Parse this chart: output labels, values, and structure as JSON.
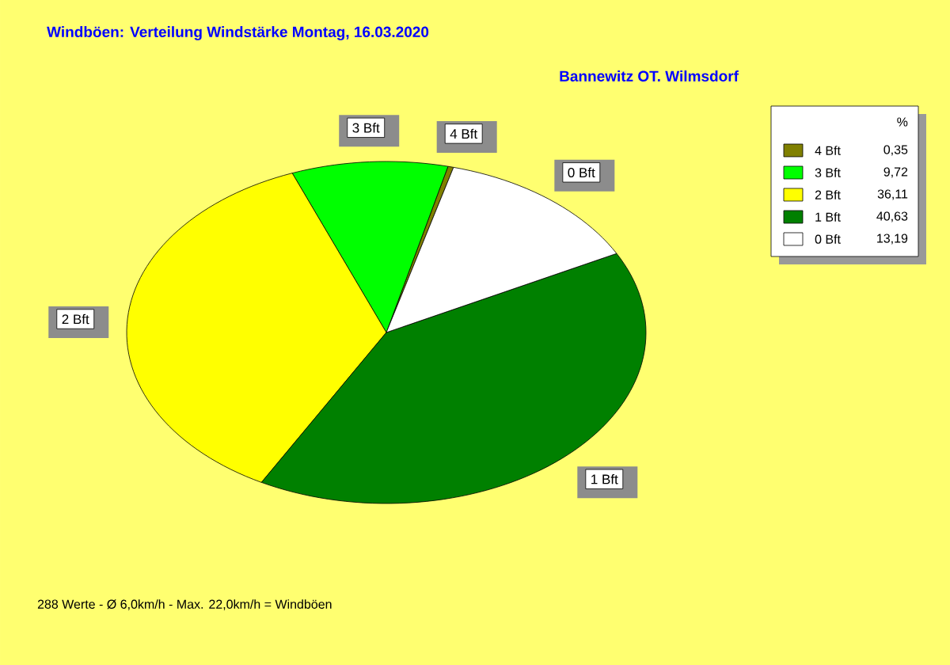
{
  "chart_data": {
    "type": "pie",
    "title": "Windböen: Verteilung Windstärke  Montag, 16.03.2020",
    "subtitle": "Bannewitz OT. Wilmsdorf",
    "categories": [
      "4 Bft",
      "3 Bft",
      "2 Bft",
      "1 Bft",
      "0 Bft"
    ],
    "values": [
      0.35,
      9.72,
      36.11,
      40.63,
      13.19
    ],
    "value_labels": [
      "0,35",
      "9,72",
      "36,11",
      "40,63",
      "13,19"
    ],
    "colors": [
      "#808000",
      "#00ff00",
      "#ffff00",
      "#008000",
      "#ffffff"
    ],
    "legend": "top right",
    "legend_title": "%",
    "annotations": [
      "288 Werte   -   Ø 6,0km/h  -  Max. 22,0km/h = Windböen"
    ]
  }
}
